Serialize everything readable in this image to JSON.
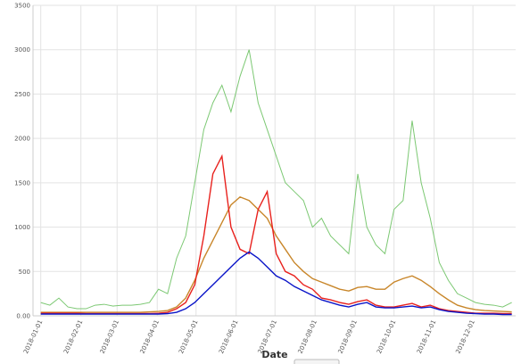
{
  "chart_data": {
    "type": "line",
    "x_label": "Date",
    "x": [
      "2018-01-01",
      "2018-01-08",
      "2018-01-15",
      "2018-01-22",
      "2018-01-29",
      "2018-02-05",
      "2018-02-12",
      "2018-02-19",
      "2018-02-26",
      "2018-03-05",
      "2018-03-12",
      "2018-03-19",
      "2018-03-26",
      "2018-04-02",
      "2018-04-09",
      "2018-04-16",
      "2018-04-23",
      "2018-04-30",
      "2018-05-07",
      "2018-05-14",
      "2018-05-21",
      "2018-05-28",
      "2018-06-04",
      "2018-06-11",
      "2018-06-18",
      "2018-06-25",
      "2018-07-02",
      "2018-07-09",
      "2018-07-16",
      "2018-07-23",
      "2018-07-30",
      "2018-08-06",
      "2018-08-13",
      "2018-08-20",
      "2018-08-27",
      "2018-09-03",
      "2018-09-10",
      "2018-09-17",
      "2018-09-24",
      "2018-10-01",
      "2018-10-08",
      "2018-10-15",
      "2018-10-22",
      "2018-10-29",
      "2018-11-05",
      "2018-11-12",
      "2018-11-19",
      "2018-11-26",
      "2018-12-03",
      "2018-12-10",
      "2018-12-17",
      "2018-12-24",
      "2018-12-31"
    ],
    "series": [
      {
        "color": "#7cc873",
        "values": [
          150,
          120,
          200,
          100,
          80,
          80,
          120,
          130,
          110,
          120,
          120,
          130,
          150,
          300,
          250,
          650,
          900,
          1500,
          2100,
          2400,
          2600,
          2300,
          2700,
          3000,
          2400,
          2100,
          1800,
          1500,
          1400,
          1300,
          1000,
          1100,
          900,
          800,
          700,
          1600,
          1000,
          800,
          700,
          1200,
          1300,
          2200,
          1500,
          1100,
          600,
          400,
          250,
          200,
          150,
          130,
          120,
          100,
          150
        ]
      },
      {
        "color": "#c8862a",
        "values": [
          40,
          40,
          40,
          40,
          40,
          40,
          40,
          40,
          40,
          40,
          40,
          40,
          45,
          50,
          60,
          100,
          200,
          400,
          650,
          850,
          1050,
          1250,
          1340,
          1300,
          1200,
          1100,
          900,
          750,
          600,
          500,
          420,
          380,
          340,
          300,
          280,
          320,
          330,
          300,
          300,
          380,
          420,
          450,
          400,
          330,
          250,
          180,
          120,
          90,
          70,
          60,
          55,
          50,
          45
        ]
      },
      {
        "color": "#e8211d",
        "values": [
          30,
          30,
          30,
          30,
          30,
          25,
          25,
          25,
          25,
          25,
          25,
          25,
          25,
          30,
          40,
          80,
          150,
          350,
          900,
          1600,
          1800,
          1000,
          750,
          700,
          1200,
          1400,
          700,
          500,
          450,
          350,
          300,
          200,
          180,
          150,
          130,
          160,
          180,
          120,
          100,
          100,
          120,
          140,
          100,
          120,
          80,
          60,
          50,
          40,
          30,
          30,
          30,
          25,
          25
        ]
      },
      {
        "color": "#0a14c8",
        "values": [
          20,
          20,
          20,
          20,
          20,
          20,
          20,
          20,
          20,
          20,
          20,
          20,
          20,
          20,
          25,
          40,
          80,
          150,
          250,
          350,
          450,
          550,
          650,
          720,
          650,
          550,
          450,
          400,
          330,
          280,
          230,
          180,
          150,
          120,
          100,
          130,
          150,
          100,
          90,
          90,
          100,
          110,
          90,
          100,
          70,
          50,
          40,
          30,
          25,
          20,
          20,
          15,
          15
        ]
      }
    ],
    "xlim": [
      "2017-12-26",
      "2019-01-03"
    ],
    "xticks": [
      "2018-01-01",
      "2018-02-01",
      "2018-03-01",
      "2018-04-01",
      "2018-05-01",
      "2018-06-01",
      "2018-07-01",
      "2018-08-01",
      "2018-09-01",
      "2018-10-01",
      "2018-11-01",
      "2018-12-01"
    ],
    "ylim": [
      0,
      3500
    ],
    "yticks": [
      {
        "value": 0,
        "label": "0.00"
      },
      500,
      1000,
      1500,
      2000,
      2500,
      3000,
      3500
    ],
    "grid": true
  }
}
